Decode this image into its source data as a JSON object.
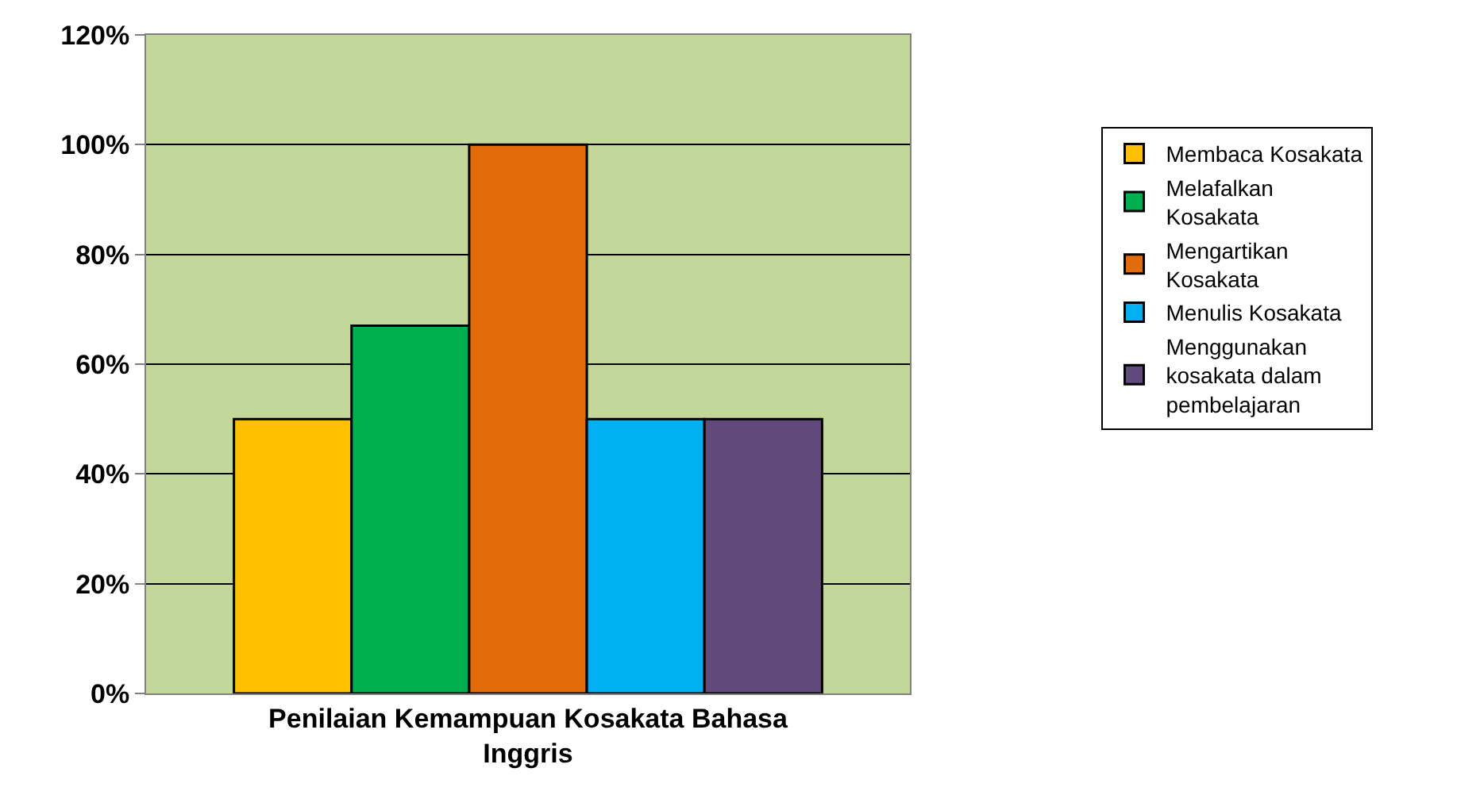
{
  "chart_data": {
    "type": "bar",
    "categories": [
      "Penilaian Kemampuan Kosakata Bahasa Inggris"
    ],
    "series": [
      {
        "name": "Membaca Kosakata",
        "color": "#ffc000",
        "values": [
          50
        ]
      },
      {
        "name": "Melafalkan Kosakata",
        "color": "#00b050",
        "values": [
          67
        ]
      },
      {
        "name": "Mengartikan Kosakata",
        "color": "#e26b0a",
        "values": [
          100
        ]
      },
      {
        "name": "Menulis Kosakata",
        "color": "#00b0f0",
        "values": [
          50
        ]
      },
      {
        "name": "Menggunakan kosakata dalam pembelajaran",
        "color": "#604a7b",
        "values": [
          50
        ]
      }
    ],
    "ylim": [
      0,
      120
    ],
    "yticks": [
      {
        "value": 0,
        "label": "0%"
      },
      {
        "value": 20,
        "label": "20%"
      },
      {
        "value": 40,
        "label": "40%"
      },
      {
        "value": 60,
        "label": "60%"
      },
      {
        "value": 80,
        "label": "80%"
      },
      {
        "value": 100,
        "label": "100%"
      },
      {
        "value": 120,
        "label": "120%"
      }
    ],
    "grid": "y",
    "legend": "right"
  }
}
